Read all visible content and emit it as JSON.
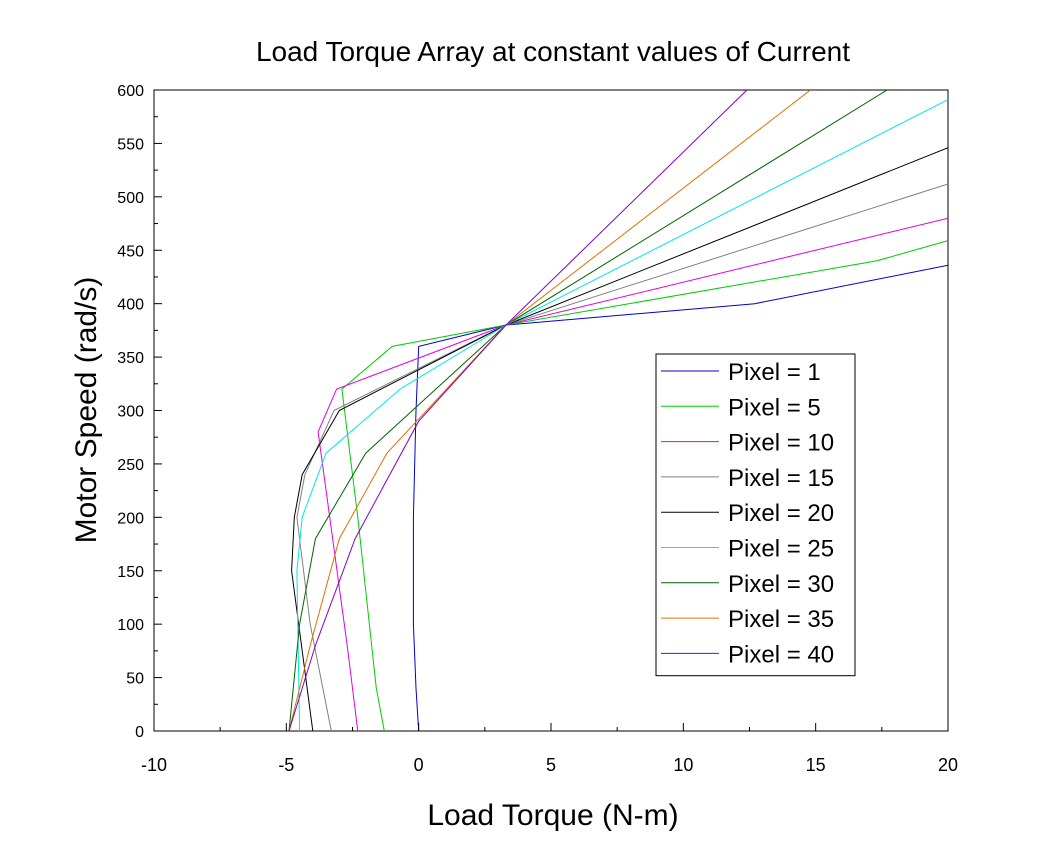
{
  "chart_data": {
    "type": "line",
    "title": "Load Torque Array at constant values of Current",
    "xlabel": "Load Torque (N-m)",
    "ylabel": "Motor Speed (rad/s)",
    "xlim": [
      -10,
      20
    ],
    "ylim": [
      0,
      600
    ],
    "xticks": [
      "-10",
      "-5",
      "0",
      "5",
      "10",
      "15",
      "20"
    ],
    "yticks": [
      "0",
      "50",
      "100",
      "150",
      "200",
      "250",
      "300",
      "350",
      "400",
      "450",
      "500",
      "550",
      "600"
    ],
    "grid": false,
    "legend_position": "right",
    "series": [
      {
        "name": "Pixel = 1",
        "color": "#0000cc",
        "points": [
          [
            0,
            0
          ],
          [
            -0.1,
            40
          ],
          [
            -0.2,
            100
          ],
          [
            -0.2,
            200
          ],
          [
            -0.1,
            300
          ],
          [
            0,
            360
          ],
          [
            3.3,
            380
          ],
          [
            12.7,
            400
          ],
          [
            20,
            436
          ]
        ]
      },
      {
        "name": "Pixel = 5",
        "color": "#00cc00",
        "points": [
          [
            -1.3,
            0
          ],
          [
            -1.6,
            40
          ],
          [
            -2.3,
            200
          ],
          [
            -2.9,
            320
          ],
          [
            -1.0,
            360
          ],
          [
            3.3,
            380
          ],
          [
            17.3,
            440
          ],
          [
            20,
            459
          ]
        ]
      },
      {
        "name": "Pixel = 10",
        "color": "#e000e0",
        "points": [
          [
            -2.3,
            0
          ],
          [
            -2.7,
            80
          ],
          [
            -3.8,
            280
          ],
          [
            -3.1,
            320
          ],
          [
            3.3,
            380
          ],
          [
            20,
            480
          ]
        ]
      },
      {
        "name": "Pixel = 15",
        "color": "#808080",
        "points": [
          [
            -3.3,
            0
          ],
          [
            -4.1,
            100
          ],
          [
            -4.6,
            200
          ],
          [
            -4.3,
            240
          ],
          [
            -3.2,
            300
          ],
          [
            3.3,
            380
          ],
          [
            20,
            512
          ]
        ]
      },
      {
        "name": "Pixel = 20",
        "color": "#000000",
        "points": [
          [
            -4.0,
            0
          ],
          [
            -4.8,
            150
          ],
          [
            -4.7,
            200
          ],
          [
            -4.4,
            240
          ],
          [
            -3.0,
            300
          ],
          [
            3.3,
            380
          ],
          [
            20,
            546
          ]
        ]
      },
      {
        "name": "Pixel = 25",
        "color": "#00e5ee",
        "points": [
          [
            -4.5,
            0
          ],
          [
            -4.6,
            150
          ],
          [
            -4.4,
            200
          ],
          [
            -3.5,
            260
          ],
          [
            -0.7,
            320
          ],
          [
            3.3,
            380
          ],
          [
            20,
            591
          ]
        ]
      },
      {
        "name": "Pixel = 30",
        "color": "#006400",
        "points": [
          [
            -4.9,
            0
          ],
          [
            -4.5,
            100
          ],
          [
            -3.9,
            180
          ],
          [
            -2.0,
            260
          ],
          [
            3.3,
            380
          ],
          [
            17.7,
            600
          ]
        ]
      },
      {
        "name": "Pixel = 35",
        "color": "#e07000",
        "points": [
          [
            -4.9,
            0
          ],
          [
            -4.1,
            80
          ],
          [
            -3.0,
            180
          ],
          [
            -1.2,
            260
          ],
          [
            3.3,
            380
          ],
          [
            14.8,
            600
          ]
        ]
      },
      {
        "name": "Pixel = 40",
        "color": "#8000c0",
        "points": [
          [
            -4.9,
            0
          ],
          [
            -3.9,
            80
          ],
          [
            -2.4,
            180
          ],
          [
            0,
            290
          ],
          [
            3.3,
            380
          ],
          [
            12.4,
            600
          ]
        ]
      }
    ]
  }
}
